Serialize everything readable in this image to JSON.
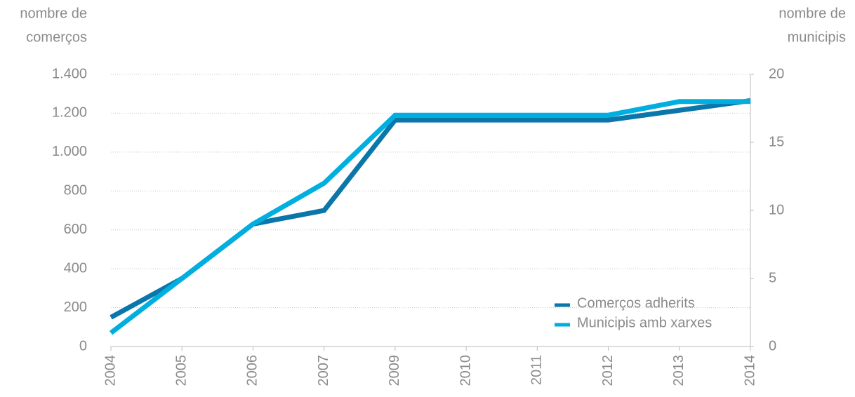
{
  "chart_data": {
    "type": "line",
    "ylabel": [
      "nombre de",
      "comerços"
    ],
    "y2label": [
      "nombre de",
      "municipis"
    ],
    "categories": [
      "2004",
      "2005",
      "2006",
      "2007",
      "2009",
      "2010",
      "2011",
      "2012",
      "2013",
      "2014"
    ],
    "series": [
      {
        "name": "Comerços adherits",
        "color": "#0b76a9",
        "values": [
          150,
          350,
          630,
          700,
          1165,
          1165,
          1165,
          1165,
          1215,
          1265
        ]
      },
      {
        "name": "Municipis amb xarxes",
        "color": "#00afdf",
        "axis": "y2",
        "values": [
          1,
          5,
          9,
          12,
          17,
          17,
          17,
          17,
          18,
          18
        ]
      }
    ],
    "ylim": [
      0,
      1400
    ],
    "yticks": [
      0,
      200,
      400,
      600,
      800,
      {
        "value": 1000,
        "label": "1.000"
      },
      {
        "value": 1200,
        "label": "1.200"
      },
      {
        "value": 1400,
        "label": "1.400"
      }
    ],
    "y2lim": [
      0,
      20
    ],
    "y2ticks": [
      0,
      5,
      10,
      15,
      20
    ],
    "grid": true,
    "legend": "lower right"
  }
}
